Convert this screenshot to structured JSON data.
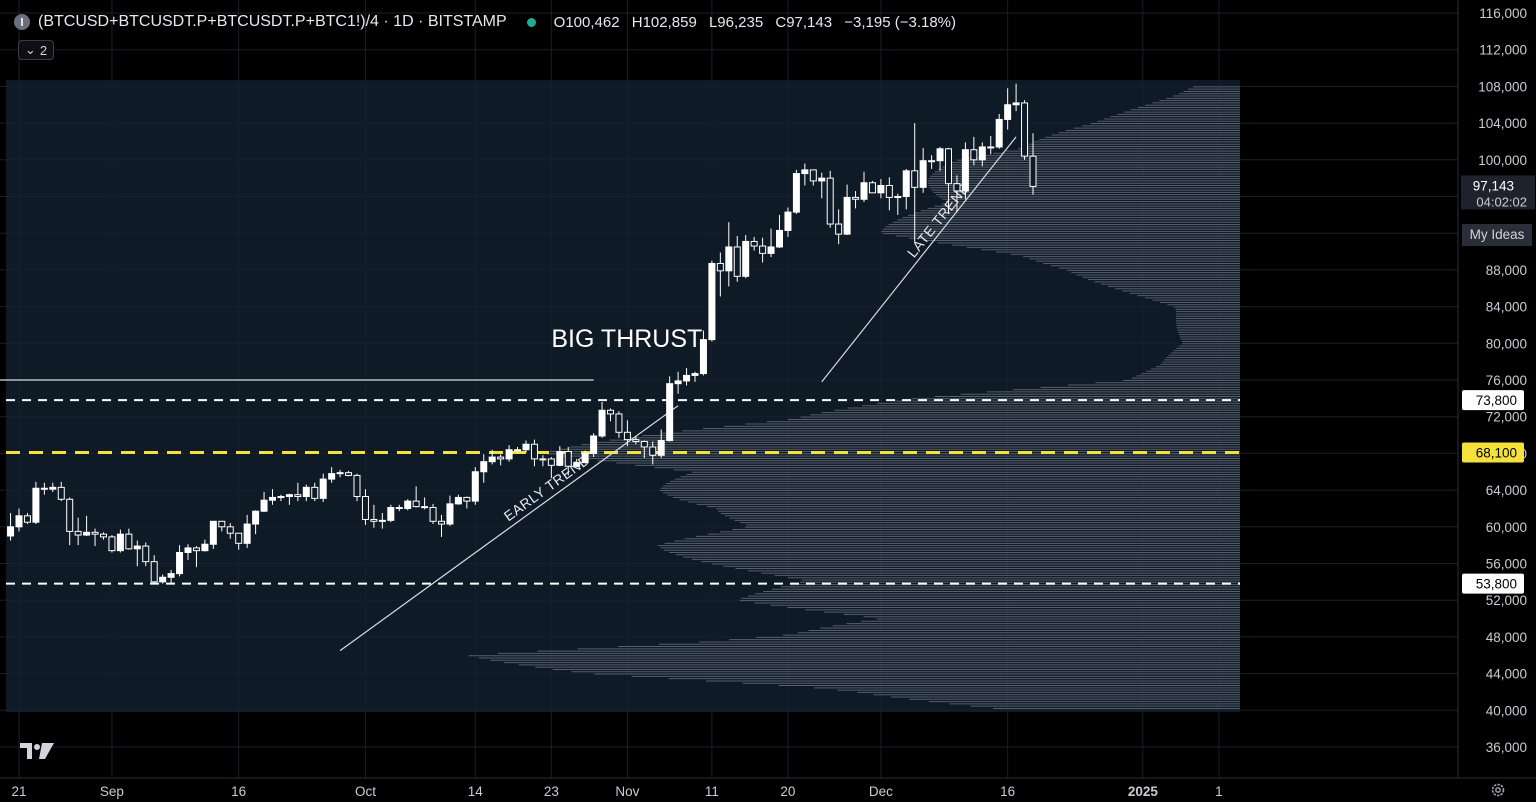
{
  "header": {
    "symbol": "(BTCUSD+BTCUSDT.P+BTCUSDT.P+BTC1!)/4 · 1D · BITSTAMP",
    "open": "O100,462",
    "high": "H102,859",
    "low": "L96,235",
    "close": "C97,143",
    "change": "−3,195 (−3.18%)",
    "indicator_count": "2"
  },
  "price_scale": {
    "current_price": "97,143",
    "countdown": "04:02:02",
    "my_ideas": "My Ideas"
  },
  "colors": {
    "background": "#000000",
    "panel": "#0f1a27",
    "candle": "#ffffff",
    "volume_profile": "#b9bec8",
    "key_level": "#f5e13b",
    "status_dot": "#22ab94"
  },
  "icons": [
    "info-icon",
    "chevron-down-icon",
    "tradingview-logo-icon",
    "gear-icon"
  ],
  "chart_data": {
    "type": "candlestick",
    "ylim": [
      34000,
      117000
    ],
    "y_ticks": [
      116000,
      112000,
      108000,
      104000,
      100000,
      96000,
      92000,
      88000,
      84000,
      80000,
      76000,
      72000,
      68000,
      64000,
      60000,
      56000,
      52000,
      48000,
      44000,
      40000,
      36000
    ],
    "y_tick_labels": [
      "116,000",
      "112,000",
      "108,000",
      "104,000",
      "100,000",
      "96,000",
      "92,000",
      "88,000",
      "84,000",
      "80,000",
      "76,000",
      "72,000",
      "68,000",
      "64,000",
      "60,000",
      "56,000",
      "52,000",
      "48,000",
      "44,000",
      "40,000",
      "36,000"
    ],
    "x_tick_labels": [
      {
        "label": "21",
        "date": "2024-08-21"
      },
      {
        "label": "Sep",
        "date": "2024-09-01"
      },
      {
        "label": "16",
        "date": "2024-09-16"
      },
      {
        "label": "Oct",
        "date": "2024-10-01"
      },
      {
        "label": "14",
        "date": "2024-10-14"
      },
      {
        "label": "23",
        "date": "2024-10-23"
      },
      {
        "label": "Nov",
        "date": "2024-11-01"
      },
      {
        "label": "11",
        "date": "2024-11-11"
      },
      {
        "label": "20",
        "date": "2024-11-20"
      },
      {
        "label": "Dec",
        "date": "2024-12-01"
      },
      {
        "label": "16",
        "date": "2024-12-16"
      },
      {
        "label": "2025",
        "date": "2025-01-01"
      },
      {
        "label": "1",
        "date": "2025-01-10"
      }
    ],
    "candles": [
      [
        "2024-08-20",
        59000,
        61500,
        58500,
        60000
      ],
      [
        "2024-08-21",
        60000,
        62000,
        59500,
        61200
      ],
      [
        "2024-08-22",
        61200,
        61500,
        60300,
        60500
      ],
      [
        "2024-08-23",
        60500,
        64900,
        60300,
        64200
      ],
      [
        "2024-08-24",
        64200,
        64800,
        63500,
        64100
      ],
      [
        "2024-08-25",
        64100,
        64800,
        63800,
        64300
      ],
      [
        "2024-08-26",
        64300,
        64900,
        62800,
        63000
      ],
      [
        "2024-08-27",
        63000,
        63200,
        58000,
        59500
      ],
      [
        "2024-08-28",
        59500,
        61000,
        58000,
        59100
      ],
      [
        "2024-08-29",
        59100,
        61200,
        59000,
        59400
      ],
      [
        "2024-08-30",
        59400,
        59800,
        57900,
        59200
      ],
      [
        "2024-08-31",
        59200,
        59400,
        58600,
        58900
      ],
      [
        "2024-09-01",
        58900,
        59100,
        57200,
        57400
      ],
      [
        "2024-09-02",
        57400,
        59700,
        57200,
        59200
      ],
      [
        "2024-09-03",
        59200,
        59800,
        57500,
        57600
      ],
      [
        "2024-09-04",
        57600,
        58500,
        55700,
        57900
      ],
      [
        "2024-09-05",
        57900,
        58300,
        55700,
        56200
      ],
      [
        "2024-09-06",
        56200,
        56900,
        53800,
        54000
      ],
      [
        "2024-09-07",
        54000,
        54800,
        53800,
        54500
      ],
      [
        "2024-09-08",
        54500,
        55300,
        53700,
        54900
      ],
      [
        "2024-09-09",
        54900,
        58000,
        54600,
        57200
      ],
      [
        "2024-09-10",
        57200,
        58100,
        56400,
        57700
      ],
      [
        "2024-09-11",
        57700,
        57900,
        55600,
        57400
      ],
      [
        "2024-09-12",
        57400,
        58600,
        57300,
        58100
      ],
      [
        "2024-09-13",
        58100,
        60600,
        57600,
        60600
      ],
      [
        "2024-09-14",
        60600,
        60600,
        59500,
        60000
      ],
      [
        "2024-09-15",
        60000,
        60400,
        58700,
        59300
      ],
      [
        "2024-09-16",
        59300,
        59300,
        57500,
        58200
      ],
      [
        "2024-09-17",
        58200,
        61300,
        57700,
        60300
      ],
      [
        "2024-09-18",
        60300,
        61800,
        59200,
        61700
      ],
      [
        "2024-09-19",
        61700,
        63800,
        61600,
        62900
      ],
      [
        "2024-09-20",
        62900,
        64100,
        62400,
        63200
      ],
      [
        "2024-09-21",
        63200,
        63500,
        62800,
        63300
      ],
      [
        "2024-09-22",
        63300,
        63600,
        62400,
        63500
      ],
      [
        "2024-09-23",
        63500,
        64800,
        62800,
        63300
      ],
      [
        "2024-09-24",
        63300,
        64600,
        62800,
        64300
      ],
      [
        "2024-09-25",
        64300,
        64800,
        62800,
        63100
      ],
      [
        "2024-09-26",
        63100,
        65800,
        62700,
        65200
      ],
      [
        "2024-09-27",
        65200,
        66500,
        64800,
        65800
      ],
      [
        "2024-09-28",
        65800,
        66200,
        65400,
        65900
      ],
      [
        "2024-09-29",
        65900,
        66100,
        65500,
        65600
      ],
      [
        "2024-09-30",
        65600,
        65800,
        62800,
        63300
      ],
      [
        "2024-10-01",
        63300,
        64100,
        60200,
        60800
      ],
      [
        "2024-10-02",
        60800,
        62400,
        59900,
        60600
      ],
      [
        "2024-10-03",
        60600,
        61500,
        59800,
        60700
      ],
      [
        "2024-10-04",
        60700,
        62400,
        60500,
        62100
      ],
      [
        "2024-10-05",
        62100,
        62400,
        61700,
        62000
      ],
      [
        "2024-10-06",
        62000,
        63000,
        61800,
        62800
      ],
      [
        "2024-10-07",
        62800,
        64400,
        62100,
        62200
      ],
      [
        "2024-10-08",
        62200,
        63200,
        61900,
        62100
      ],
      [
        "2024-10-09",
        62100,
        62500,
        60300,
        60600
      ],
      [
        "2024-10-10",
        60600,
        61300,
        58900,
        60300
      ],
      [
        "2024-10-11",
        60300,
        63400,
        60100,
        62500
      ],
      [
        "2024-10-12",
        62500,
        63500,
        62400,
        63200
      ],
      [
        "2024-10-13",
        63200,
        63300,
        62000,
        62800
      ],
      [
        "2024-10-14",
        62800,
        66500,
        62400,
        66000
      ],
      [
        "2024-10-15",
        66000,
        67900,
        64800,
        67100
      ],
      [
        "2024-10-16",
        67100,
        68400,
        66800,
        67600
      ],
      [
        "2024-10-17",
        67600,
        67900,
        66700,
        67400
      ],
      [
        "2024-10-18",
        67400,
        68900,
        67100,
        68400
      ],
      [
        "2024-10-19",
        68400,
        68700,
        68000,
        68400
      ],
      [
        "2024-10-20",
        68400,
        69400,
        68100,
        69000
      ],
      [
        "2024-10-21",
        69000,
        69500,
        66600,
        67400
      ],
      [
        "2024-10-22",
        67400,
        67800,
        66600,
        67400
      ],
      [
        "2024-10-23",
        67400,
        67600,
        65300,
        66700
      ],
      [
        "2024-10-24",
        66700,
        68800,
        66600,
        68200
      ],
      [
        "2024-10-25",
        68200,
        68700,
        65600,
        66600
      ],
      [
        "2024-10-26",
        66600,
        67400,
        66500,
        67000
      ],
      [
        "2024-10-27",
        67000,
        68300,
        66900,
        68000
      ],
      [
        "2024-10-28",
        68000,
        70200,
        67600,
        69900
      ],
      [
        "2024-10-29",
        69900,
        73600,
        69700,
        72700
      ],
      [
        "2024-10-30",
        72700,
        72900,
        71500,
        72300
      ],
      [
        "2024-10-31",
        72300,
        72600,
        69700,
        70300
      ],
      [
        "2024-11-01",
        70300,
        71600,
        68800,
        69500
      ],
      [
        "2024-11-02",
        69500,
        69900,
        69000,
        69300
      ],
      [
        "2024-11-03",
        69300,
        69400,
        67500,
        68700
      ],
      [
        "2024-11-04",
        68700,
        69300,
        66800,
        67800
      ],
      [
        "2024-11-05",
        67800,
        70600,
        67500,
        69400
      ],
      [
        "2024-11-06",
        69400,
        76400,
        69300,
        75600
      ],
      [
        "2024-11-07",
        75600,
        76900,
        74500,
        75900
      ],
      [
        "2024-11-08",
        75900,
        77300,
        75400,
        76500
      ],
      [
        "2024-11-09",
        76500,
        76900,
        75800,
        76700
      ],
      [
        "2024-11-10",
        76700,
        81400,
        76500,
        80400
      ],
      [
        "2024-11-11",
        80400,
        89000,
        80200,
        88700
      ],
      [
        "2024-11-12",
        88700,
        89900,
        85100,
        87900
      ],
      [
        "2024-11-13",
        87900,
        93200,
        86200,
        90500
      ],
      [
        "2024-11-14",
        90500,
        91700,
        86700,
        87300
      ],
      [
        "2024-11-15",
        87300,
        91800,
        87100,
        91100
      ],
      [
        "2024-11-16",
        91100,
        91600,
        90100,
        90600
      ],
      [
        "2024-11-17",
        90600,
        91500,
        88800,
        89800
      ],
      [
        "2024-11-18",
        89800,
        92500,
        89400,
        90500
      ],
      [
        "2024-11-19",
        90500,
        94000,
        90400,
        92300
      ],
      [
        "2024-11-20",
        92300,
        94800,
        91600,
        94300
      ],
      [
        "2024-11-21",
        94300,
        98900,
        94100,
        98500
      ],
      [
        "2024-11-22",
        98500,
        99600,
        97200,
        98900
      ],
      [
        "2024-11-23",
        98900,
        98900,
        97200,
        97700
      ],
      [
        "2024-11-24",
        97700,
        98600,
        95800,
        98000
      ],
      [
        "2024-11-25",
        98000,
        98800,
        92600,
        93000
      ],
      [
        "2024-11-26",
        93000,
        94600,
        90800,
        91900
      ],
      [
        "2024-11-27",
        91900,
        97300,
        91800,
        95900
      ],
      [
        "2024-11-28",
        95900,
        96600,
        94700,
        95700
      ],
      [
        "2024-11-29",
        95700,
        98700,
        95400,
        97500
      ],
      [
        "2024-11-30",
        97500,
        97700,
        96500,
        96400
      ],
      [
        "2024-12-01",
        96400,
        97900,
        95800,
        97200
      ],
      [
        "2024-12-02",
        97200,
        98100,
        94500,
        95900
      ],
      [
        "2024-12-03",
        95900,
        96300,
        94000,
        96000
      ],
      [
        "2024-12-04",
        96000,
        99000,
        94600,
        98800
      ],
      [
        "2024-12-05",
        98800,
        104000,
        91000,
        97000
      ],
      [
        "2024-12-06",
        97000,
        101300,
        96400,
        99900
      ],
      [
        "2024-12-07",
        99900,
        100500,
        99000,
        99900
      ],
      [
        "2024-12-08",
        99900,
        101400,
        98800,
        101200
      ],
      [
        "2024-12-09",
        101200,
        101300,
        94100,
        97400
      ],
      [
        "2024-12-10",
        97400,
        98300,
        94300,
        96600
      ],
      [
        "2024-12-11",
        96600,
        101900,
        95700,
        101100
      ],
      [
        "2024-12-12",
        101100,
        102500,
        99400,
        100000
      ],
      [
        "2024-12-13",
        100000,
        101900,
        99300,
        101400
      ],
      [
        "2024-12-14",
        101400,
        102600,
        100600,
        101400
      ],
      [
        "2024-12-15",
        101400,
        105000,
        101200,
        104400
      ],
      [
        "2024-12-16",
        104400,
        107800,
        103300,
        106000
      ],
      [
        "2024-12-17",
        106000,
        108300,
        105300,
        106200
      ],
      [
        "2024-12-18",
        106200,
        106500,
        100000,
        100400
      ],
      [
        "2024-12-19",
        100400,
        102900,
        96200,
        97100
      ]
    ],
    "levels": [
      {
        "label": "73,800",
        "value": 73800,
        "style": "dashed",
        "color": "#ffffff"
      },
      {
        "label": "68,100",
        "value": 68100,
        "style": "dashed",
        "color": "#f5e13b"
      },
      {
        "label": "53,800",
        "value": 53800,
        "style": "dashed",
        "color": "#ffffff"
      }
    ],
    "resistance_line": {
      "value": 76000,
      "from": "2024-08-20",
      "to": "2024-10-28"
    },
    "trendlines": [
      {
        "label": "EARLY TREND",
        "from": [
          "2024-09-28",
          46500
        ],
        "to": [
          "2024-11-07",
          73200
        ]
      },
      {
        "label": "LATE TREND",
        "from": [
          "2024-11-24",
          75800
        ],
        "to": [
          "2024-12-17",
          102500
        ]
      }
    ],
    "annotation": {
      "text": "BIG THRUST",
      "date": "2024-11-02",
      "value": 79600
    },
    "volume_profile_shape": [
      [
        40000,
        0.28
      ],
      [
        42000,
        0.52
      ],
      [
        44000,
        0.82
      ],
      [
        46000,
        0.95
      ],
      [
        47500,
        0.7
      ],
      [
        50000,
        0.45
      ],
      [
        52000,
        0.62
      ],
      [
        54000,
        0.6
      ],
      [
        56000,
        0.66
      ],
      [
        58000,
        0.72
      ],
      [
        60000,
        0.68
      ],
      [
        62000,
        0.65
      ],
      [
        64000,
        0.72
      ],
      [
        66000,
        0.76
      ],
      [
        68000,
        0.86
      ],
      [
        70000,
        0.74
      ],
      [
        72000,
        0.6
      ],
      [
        74000,
        0.4
      ],
      [
        76000,
        0.14
      ],
      [
        80000,
        0.07
      ],
      [
        84000,
        0.09
      ],
      [
        88000,
        0.22
      ],
      [
        92000,
        0.44
      ],
      [
        96000,
        0.4
      ],
      [
        100000,
        0.36
      ],
      [
        104000,
        0.18
      ],
      [
        108000,
        0.06
      ]
    ]
  }
}
